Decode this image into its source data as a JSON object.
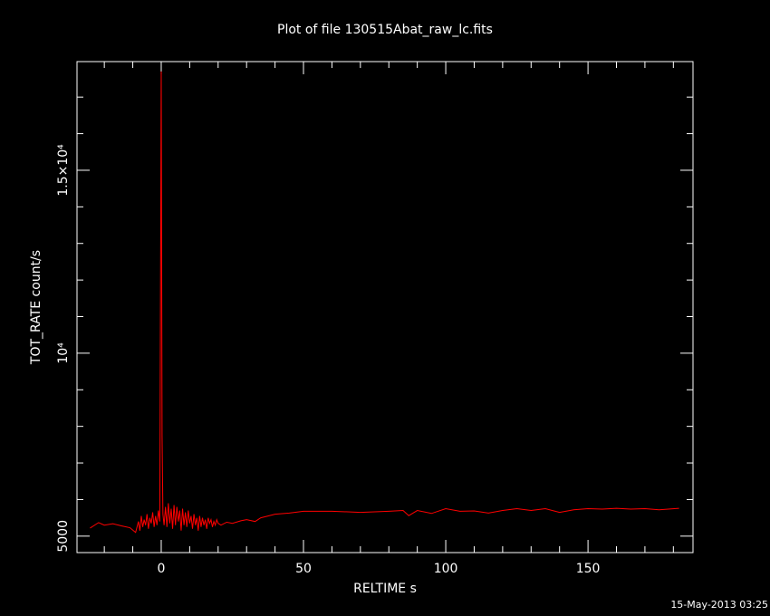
{
  "chart_data": {
    "type": "line",
    "title": "Plot of file 130515Abat_raw_lc.fits",
    "x_label": "RELTIME  s",
    "y_label": "TOT_RATE  count/s",
    "footer": "15-May-2013 03:25",
    "xlim": [
      -29.6,
      186.9
    ],
    "ylim": [
      4550,
      17970
    ],
    "xticks": [
      0,
      50,
      100,
      150
    ],
    "xminor_ticks": [
      -20,
      -10,
      10,
      20,
      30,
      40,
      60,
      70,
      80,
      90,
      110,
      120,
      130,
      140,
      160,
      170,
      180
    ],
    "yticks": [
      5000,
      {
        "value": 10000,
        "label": "10⁴"
      },
      {
        "value": 15000,
        "label": "1.5×10⁴"
      }
    ],
    "yminor_ticks": [
      6000,
      7000,
      8000,
      9000,
      11000,
      12000,
      13000,
      14000,
      16000,
      17000
    ],
    "series": [
      {
        "color": "#ff0000",
        "x": [
          -25,
          -22,
          -20,
          -17,
          -14,
          -11,
          -9,
          -8,
          -7.5,
          -7,
          -6.5,
          -6,
          -5.5,
          -5,
          -4.5,
          -4,
          -3.5,
          -3,
          -2.5,
          -2,
          -1.5,
          -1,
          -0.5,
          0,
          0.3,
          0.6,
          1,
          1.5,
          2,
          2.5,
          3,
          3.5,
          4,
          4.5,
          5,
          5.5,
          6,
          6.5,
          7,
          7.5,
          8,
          8.5,
          9,
          9.5,
          10,
          10.5,
          11,
          11.5,
          12,
          12.5,
          13,
          13.5,
          14,
          14.5,
          15,
          15.5,
          16,
          16.5,
          17,
          17.5,
          18,
          18.5,
          19,
          19.5,
          20,
          21,
          23,
          25,
          28,
          30,
          33,
          35,
          38,
          40,
          45,
          50,
          60,
          70,
          80,
          85,
          87,
          90,
          95,
          100,
          105,
          110,
          115,
          120,
          125,
          130,
          135,
          140,
          145,
          150,
          155,
          160,
          165,
          170,
          175,
          182
        ],
        "values": [
          5220,
          5370,
          5300,
          5340,
          5280,
          5230,
          5100,
          5400,
          5150,
          5550,
          5250,
          5450,
          5300,
          5600,
          5200,
          5500,
          5350,
          5650,
          5250,
          5550,
          5300,
          5700,
          5400,
          17700,
          7750,
          5600,
          5300,
          5800,
          5250,
          5900,
          5350,
          5750,
          5200,
          5850,
          5300,
          5800,
          5400,
          5700,
          5150,
          5750,
          5300,
          5650,
          5250,
          5700,
          5350,
          5550,
          5200,
          5600,
          5300,
          5500,
          5150,
          5550,
          5250,
          5500,
          5300,
          5450,
          5200,
          5500,
          5350,
          5450,
          5250,
          5400,
          5300,
          5450,
          5350,
          5300,
          5380,
          5350,
          5420,
          5450,
          5400,
          5500,
          5560,
          5600,
          5630,
          5680,
          5680,
          5650,
          5680,
          5700,
          5560,
          5700,
          5620,
          5750,
          5680,
          5690,
          5630,
          5700,
          5750,
          5700,
          5750,
          5650,
          5720,
          5750,
          5740,
          5760,
          5740,
          5750,
          5720,
          5760
        ]
      }
    ]
  }
}
